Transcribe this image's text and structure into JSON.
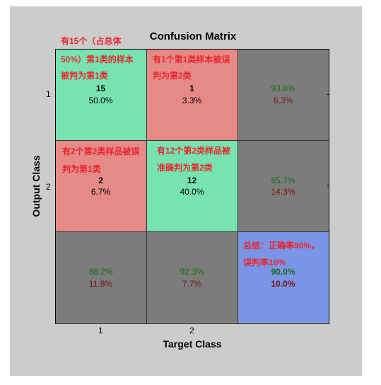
{
  "chart_data": {
    "type": "heatmap",
    "title": "Confusion Matrix",
    "xlabel": "Target Class",
    "ylabel": "Output Class",
    "x_ticks": [
      "1",
      "2"
    ],
    "y_ticks": [
      "1",
      "2"
    ],
    "matrix": [
      [
        {
          "count": "15",
          "pct": "50.0%"
        },
        {
          "count": "1",
          "pct": "3.3%"
        }
      ],
      [
        {
          "count": "2",
          "pct": "6.7%"
        },
        {
          "count": "12",
          "pct": "40.0%"
        }
      ]
    ],
    "row_summary": [
      {
        "correct": "93.8%",
        "error": "6.3%"
      },
      {
        "correct": "85.7%",
        "error": "14.3%"
      }
    ],
    "col_summary": [
      {
        "correct": "88.2%",
        "error": "11.8%"
      },
      {
        "correct": "92.3%",
        "error": "7.7%"
      }
    ],
    "overall": {
      "correct": "90.0%",
      "error": "10.0%"
    },
    "colors": {
      "correct_cell": "#77e3b1",
      "error_cell": "#e68a88",
      "summary_cell": "#7c7c7c",
      "overall_cell": "#7b95e6",
      "background": "#cccccc"
    }
  },
  "annotations": {
    "cell_11": [
      "有15个（占总体",
      "50%）第1类的样本",
      "被判为第1类"
    ],
    "cell_12": [
      "有1个第1类样本被误",
      "判为第2类"
    ],
    "cell_21": [
      "有2个第2类样品被误",
      "判为第1类"
    ],
    "cell_22": [
      "有12个第2类样品被",
      "准确判为第2类"
    ],
    "overall": [
      "总结：正确率90%，",
      "误判率10%"
    ]
  }
}
